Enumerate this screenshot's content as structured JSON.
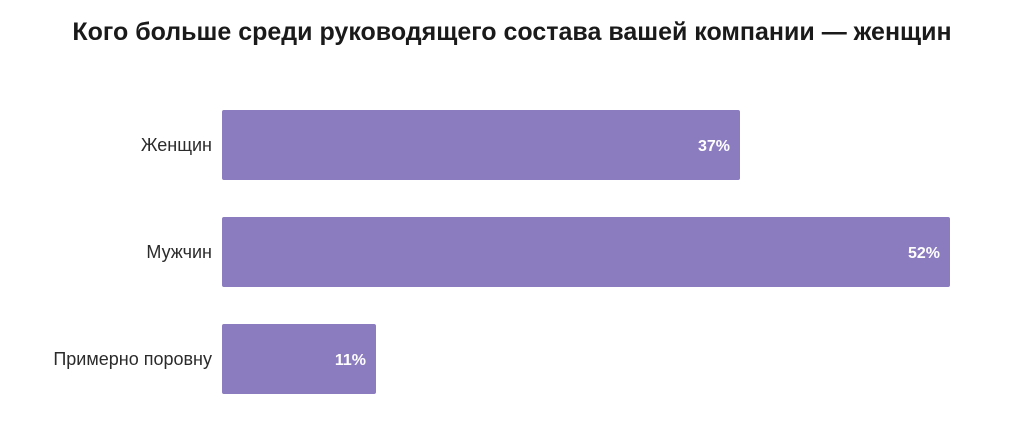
{
  "chart_data": {
    "type": "bar",
    "orientation": "horizontal",
    "title": "Кого больше среди руководящего состава вашей компании — женщин",
    "categories": [
      "Женщин",
      "Мужчин",
      "Примерно поровну"
    ],
    "values": [
      37,
      52,
      11
    ],
    "value_labels": [
      "37%",
      "52%",
      "11%"
    ],
    "unit": "%",
    "xlim": [
      0,
      52
    ],
    "grid": false,
    "legend": "none",
    "bar_color": "#8b7bbf"
  }
}
